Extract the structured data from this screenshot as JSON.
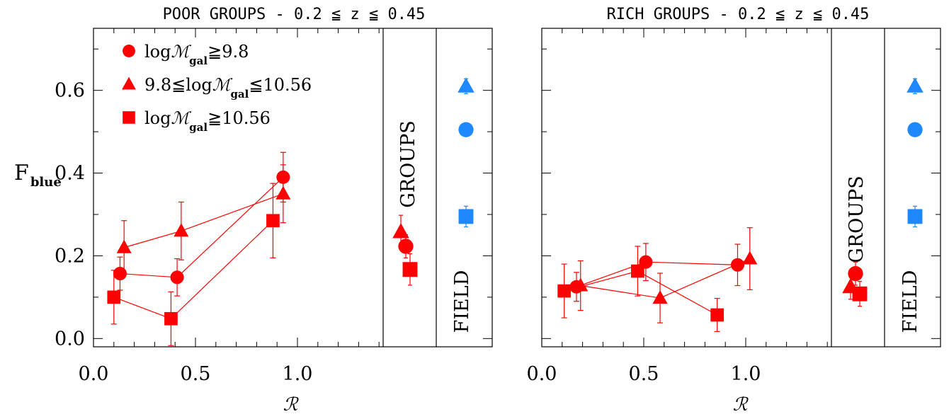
{
  "chart_data": [
    {
      "type": "scatter",
      "title": "POOR GROUPS - 0.2 ≦ z ≦ 0.45",
      "xlabel": "ℛ",
      "ylabel": "F",
      "ylabel_sub": "blue",
      "xlim": [
        0.0,
        1.45
      ],
      "ylim": [
        -0.02,
        0.75
      ],
      "x_ticks": [
        "0.0",
        "0.5",
        "1.0"
      ],
      "y_ticks": [
        "0.0",
        "0.2",
        "0.4",
        "0.6"
      ],
      "region_labels": {
        "groups": "GROUPS",
        "field": "FIELD"
      },
      "legend": [
        {
          "marker": "circle",
          "prefix": "log",
          "mathM": "ℳ",
          "sub": "gal",
          "suffix": "≧9.8"
        },
        {
          "marker": "triangle",
          "prefix": "9.8≦log",
          "mathM": "ℳ",
          "sub": "gal",
          "suffix": "≦10.56"
        },
        {
          "marker": "square",
          "prefix": "log",
          "mathM": "ℳ",
          "sub": "gal",
          "suffix": "≧10.56"
        }
      ],
      "series": [
        {
          "marker": "circle",
          "color": "#ff0000",
          "points": [
            {
              "x": 0.13,
              "y": 0.157,
              "err": 0.04
            },
            {
              "x": 0.41,
              "y": 0.148,
              "err": 0.045
            },
            {
              "x": 0.93,
              "y": 0.39,
              "err": 0.06
            }
          ],
          "groups": {
            "y": 0.223,
            "err": 0.028
          },
          "field": {
            "y": 0.505,
            "err": 0.012
          }
        },
        {
          "marker": "triangle",
          "color": "#ff0000",
          "points": [
            {
              "x": 0.15,
              "y": 0.22,
              "err": 0.065
            },
            {
              "x": 0.43,
              "y": 0.26,
              "err": 0.07
            },
            {
              "x": 0.93,
              "y": 0.35,
              "err": 0.07
            }
          ],
          "groups": {
            "y": 0.258,
            "err": 0.04
          },
          "field": {
            "y": 0.61,
            "err": 0.018
          }
        },
        {
          "marker": "square",
          "color": "#ff0000",
          "points": [
            {
              "x": 0.1,
              "y": 0.1,
              "err": 0.065
            },
            {
              "x": 0.38,
              "y": 0.048,
              "err": 0.065
            },
            {
              "x": 0.88,
              "y": 0.285,
              "err": 0.09
            }
          ],
          "groups": {
            "y": 0.167,
            "err": 0.038
          },
          "field": {
            "y": 0.295,
            "err": 0.025
          }
        }
      ],
      "field_color": "#1e88ff"
    },
    {
      "type": "scatter",
      "title": "RICH GROUPS - 0.2 ≦ z ≦ 0.45",
      "xlabel": "ℛ",
      "ylabel": "",
      "xlim": [
        0.0,
        1.45
      ],
      "ylim": [
        -0.02,
        0.75
      ],
      "x_ticks": [
        "0.0",
        "0.5",
        "1.0"
      ],
      "y_ticks": [],
      "region_labels": {
        "groups": "GROUPS",
        "field": "FIELD"
      },
      "legend": [],
      "series": [
        {
          "marker": "circle",
          "color": "#ff0000",
          "points": [
            {
              "x": 0.17,
              "y": 0.125,
              "err": 0.035
            },
            {
              "x": 0.51,
              "y": 0.185,
              "err": 0.045
            },
            {
              "x": 0.96,
              "y": 0.178,
              "err": 0.05
            }
          ],
          "groups": {
            "y": 0.157,
            "err": 0.028
          },
          "field": {
            "y": 0.505,
            "err": 0.012
          }
        },
        {
          "marker": "triangle",
          "color": "#ff0000",
          "points": [
            {
              "x": 0.19,
              "y": 0.128,
              "err": 0.06
            },
            {
              "x": 0.58,
              "y": 0.098,
              "err": 0.06
            },
            {
              "x": 1.02,
              "y": 0.193,
              "err": 0.075
            }
          ],
          "groups": {
            "y": 0.125,
            "err": 0.03
          },
          "field": {
            "y": 0.61,
            "err": 0.018
          }
        },
        {
          "marker": "square",
          "color": "#ff0000",
          "points": [
            {
              "x": 0.11,
              "y": 0.115,
              "err": 0.065
            },
            {
              "x": 0.47,
              "y": 0.163,
              "err": 0.06
            },
            {
              "x": 0.86,
              "y": 0.057,
              "err": 0.04
            }
          ],
          "groups": {
            "y": 0.108,
            "err": 0.03
          },
          "field": {
            "y": 0.295,
            "err": 0.025
          }
        }
      ],
      "field_color": "#1e88ff"
    }
  ]
}
